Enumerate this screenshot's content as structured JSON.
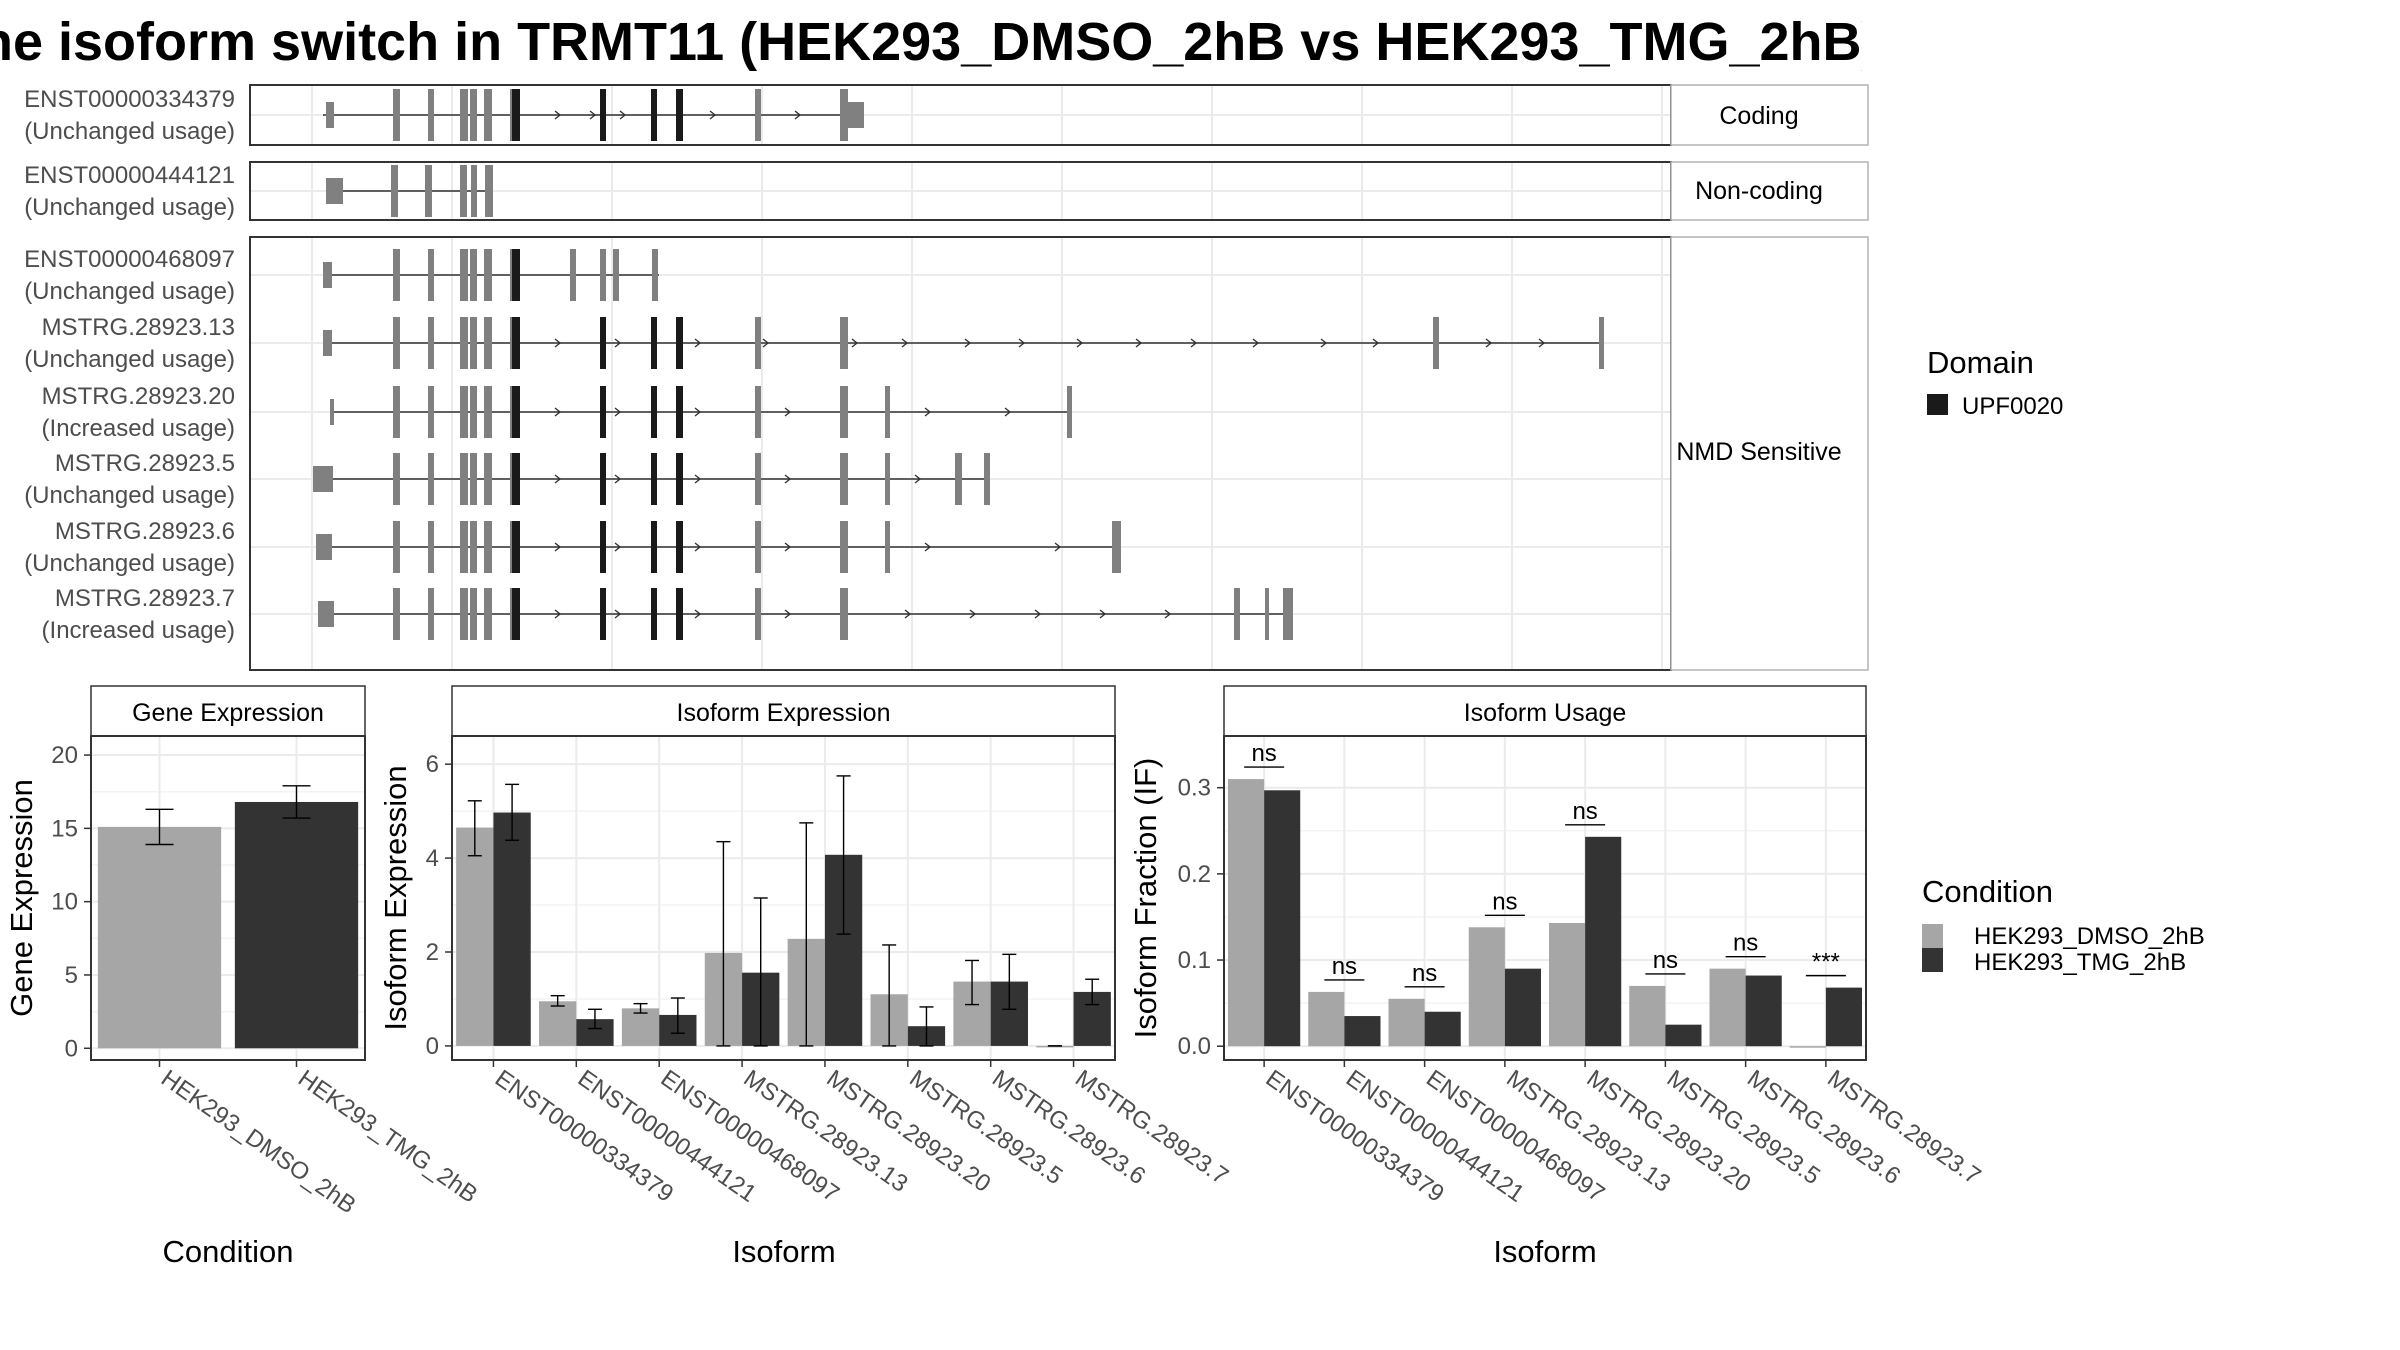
{
  "title": "he isoform switch in TRMT11 (HEK293_DMSO_2hB vs HEK293_TMG_2hB)",
  "colors": {
    "exon": "#808080",
    "domain": "#1a1a1a",
    "dmso": "#a6a6a6",
    "tmg": "#333333",
    "panel_border": "#333333",
    "strip_fill": "#ffffff",
    "grid": "#ebebeb"
  },
  "structure": {
    "groups": [
      {
        "label": "Coding",
        "transcripts": [
          {
            "id": "ENST00000334379",
            "usage": "(Unchanged usage)"
          }
        ]
      },
      {
        "label": "Non-coding",
        "transcripts": [
          {
            "id": "ENST00000444121",
            "usage": "(Unchanged usage)"
          }
        ]
      },
      {
        "label": "NMD Sensitive",
        "transcripts": [
          {
            "id": "ENST00000468097",
            "usage": "(Unchanged usage)"
          },
          {
            "id": "MSTRG.28923.13",
            "usage": "(Unchanged usage)"
          },
          {
            "id": "MSTRG.28923.20",
            "usage": "(Increased usage)"
          },
          {
            "id": "MSTRG.28923.5",
            "usage": "(Unchanged usage)"
          },
          {
            "id": "MSTRG.28923.6",
            "usage": "(Unchanged usage)"
          },
          {
            "id": "MSTRG.28923.7",
            "usage": "(Increased usage)"
          }
        ]
      }
    ]
  },
  "legend_domain": {
    "title": "Domain",
    "items": [
      "UPF0020"
    ]
  },
  "legend_condition": {
    "title": "Condition",
    "items": [
      "HEK293_DMSO_2hB",
      "HEK293_TMG_2hB"
    ]
  },
  "chart_data": [
    {
      "type": "bar",
      "title": "Gene Expression",
      "xlabel": "Condition",
      "ylabel": "Gene Expression",
      "categories": [
        "HEK293_DMSO_2hB",
        "HEK293_TMG_2hB"
      ],
      "values": [
        15.1,
        16.8
      ],
      "errors": [
        [
          13.9,
          16.3
        ],
        [
          15.7,
          17.9
        ]
      ],
      "yticks": [
        0,
        5,
        10,
        15,
        20
      ],
      "ylim": [
        -0.8,
        21.3
      ],
      "grid": true
    },
    {
      "type": "bar",
      "title": "Isoform Expression",
      "xlabel": "Isoform",
      "ylabel": "Isoform Expression",
      "categories": [
        "ENST00000334379",
        "ENST00000444121",
        "ENST00000468097",
        "MSTRG.28923.13",
        "MSTRG.28923.20",
        "MSTRG.28923.5",
        "MSTRG.28923.6",
        "MSTRG.28923.7"
      ],
      "series": [
        {
          "name": "HEK293_DMSO_2hB",
          "values": [
            4.65,
            0.95,
            0.8,
            1.98,
            2.28,
            1.1,
            1.37,
            0.0
          ],
          "errors": [
            [
              4.05,
              5.22
            ],
            [
              0.85,
              1.07
            ],
            [
              0.7,
              0.9
            ],
            [
              0.0,
              4.35
            ],
            [
              0.0,
              4.75
            ],
            [
              0.0,
              2.15
            ],
            [
              0.88,
              1.82
            ],
            [
              0.0,
              0.0
            ]
          ]
        },
        {
          "name": "HEK293_TMG_2hB",
          "values": [
            4.97,
            0.57,
            0.66,
            1.56,
            4.07,
            0.42,
            1.37,
            1.15
          ],
          "errors": [
            [
              4.38,
              5.57
            ],
            [
              0.37,
              0.78
            ],
            [
              0.27,
              1.02
            ],
            [
              0.0,
              3.15
            ],
            [
              2.38,
              5.75
            ],
            [
              0.0,
              0.83
            ],
            [
              0.78,
              1.95
            ],
            [
              0.88,
              1.42
            ]
          ]
        }
      ],
      "yticks": [
        0,
        2,
        4,
        6
      ],
      "ylim": [
        -0.3,
        6.6
      ],
      "grid": true
    },
    {
      "type": "bar",
      "title": "Isoform Usage",
      "xlabel": "Isoform",
      "ylabel": "Isoform Fraction (IF)",
      "categories": [
        "ENST00000334379",
        "ENST00000444121",
        "ENST00000468097",
        "MSTRG.28923.13",
        "MSTRG.28923.20",
        "MSTRG.28923.5",
        "MSTRG.28923.6",
        "MSTRG.28923.7"
      ],
      "series": [
        {
          "name": "HEK293_DMSO_2hB",
          "values": [
            0.31,
            0.063,
            0.055,
            0.138,
            0.143,
            0.07,
            0.09,
            0.0
          ]
        },
        {
          "name": "HEK293_TMG_2hB",
          "values": [
            0.297,
            0.035,
            0.04,
            0.09,
            0.243,
            0.025,
            0.082,
            0.068
          ]
        }
      ],
      "significance": [
        "ns",
        "ns",
        "ns",
        "ns",
        "ns",
        "ns",
        "ns",
        "***"
      ],
      "yticks": [
        0.0,
        0.1,
        0.2,
        0.3
      ],
      "ytick_labels": [
        "0.0",
        "0.1",
        "0.2",
        "0.3"
      ],
      "ylim": [
        -0.016,
        0.36
      ],
      "grid": true
    }
  ]
}
